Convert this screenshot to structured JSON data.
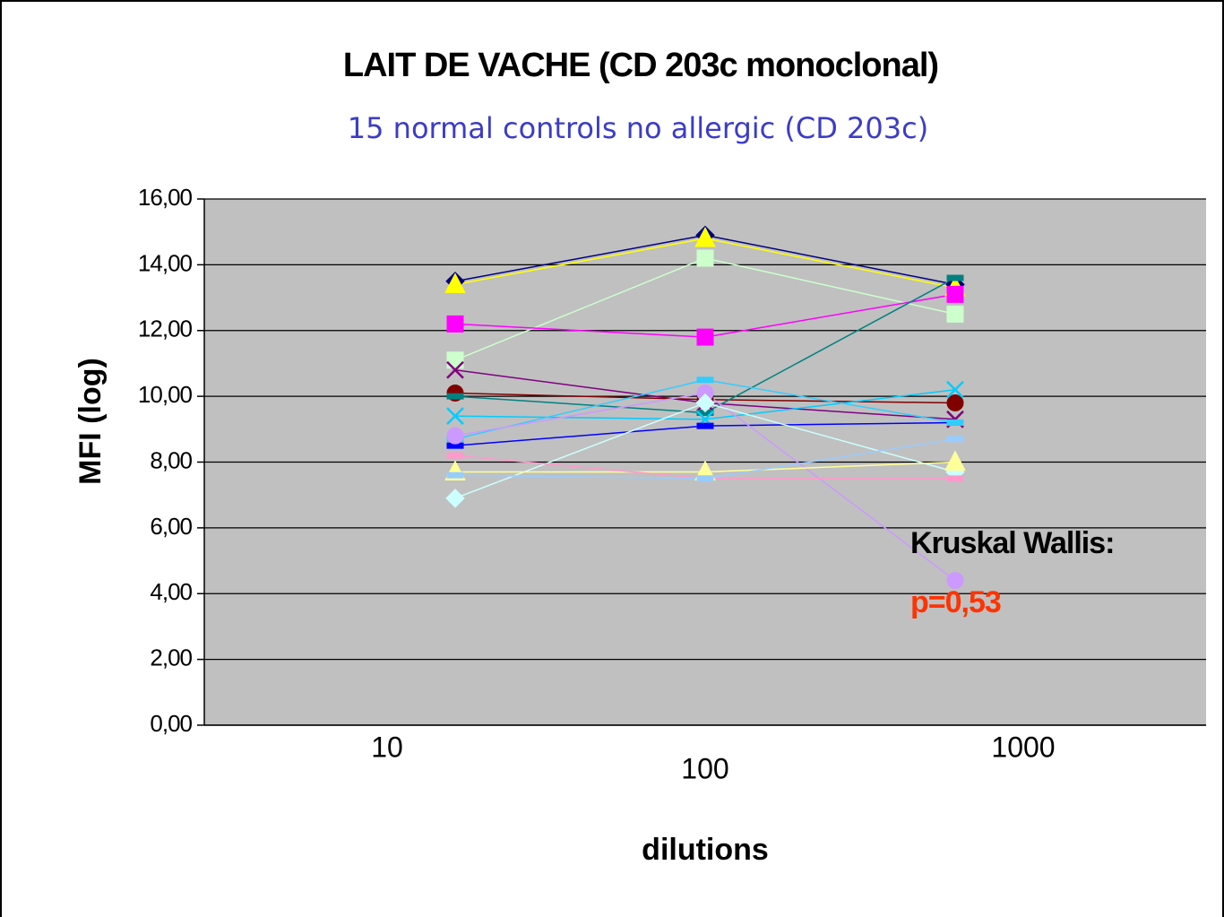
{
  "chart_data": {
    "type": "line",
    "title": "LAIT DE VACHE (CD 203c monoclonal)",
    "subtitle": "15 normal controls no allergic (CD 203c)",
    "y_label": "MFI  (log)",
    "x_label": "dilutions",
    "annotations": [
      {
        "text": "Kruskal Wallis:",
        "color": "#000000"
      },
      {
        "text": "p=0,53",
        "color": "#ff3300"
      }
    ],
    "categories": [
      "10",
      "100",
      "1000"
    ],
    "ylim": [
      0,
      16
    ],
    "yticks": [
      {
        "value": 0,
        "label": "0,00"
      },
      {
        "value": 2,
        "label": "2,00"
      },
      {
        "value": 4,
        "label": "4,00"
      },
      {
        "value": 6,
        "label": "6,00"
      },
      {
        "value": 8,
        "label": "8,00"
      },
      {
        "value": 10,
        "label": "10,00"
      },
      {
        "value": 12,
        "label": "12,00"
      },
      {
        "value": 14,
        "label": "14,00"
      },
      {
        "value": 16,
        "label": "16,00"
      }
    ],
    "grid": true,
    "plot_background": "#c0c0c0",
    "series": [
      {
        "color": "#000080",
        "marker": "diamond",
        "values": [
          13.5,
          14.9,
          13.4
        ]
      },
      {
        "color": "#ffff00",
        "marker": "triangle",
        "values": [
          13.4,
          14.8,
          13.3
        ]
      },
      {
        "color": "#ccffcc",
        "marker": "square",
        "values": [
          11.1,
          14.2,
          12.5
        ]
      },
      {
        "color": "#ff00ff",
        "marker": "square",
        "values": [
          12.2,
          11.8,
          13.1
        ]
      },
      {
        "color": "#800080",
        "marker": "x",
        "values": [
          10.8,
          9.8,
          9.3
        ]
      },
      {
        "color": "#800000",
        "marker": "circle",
        "values": [
          10.1,
          9.9,
          9.8
        ]
      },
      {
        "color": "#008080",
        "marker": "dash",
        "values": [
          10.0,
          9.5,
          13.6
        ]
      },
      {
        "color": "#00ccff",
        "marker": "x",
        "values": [
          9.4,
          9.3,
          10.2
        ]
      },
      {
        "color": "#0000ff",
        "marker": "dash",
        "values": [
          8.5,
          9.1,
          9.2
        ]
      },
      {
        "color": "#33ccff",
        "marker": "dash",
        "values": [
          8.7,
          10.5,
          9.2
        ]
      },
      {
        "color": "#cc99ff",
        "marker": "circle",
        "values": [
          8.8,
          10.1,
          4.4
        ]
      },
      {
        "color": "#ccffff",
        "marker": "diamond",
        "values": [
          6.9,
          9.8,
          7.7
        ]
      },
      {
        "color": "#ffff99",
        "marker": "triangle",
        "values": [
          7.7,
          7.7,
          8.0
        ]
      },
      {
        "color": "#ff99cc",
        "marker": "dash",
        "values": [
          8.2,
          7.5,
          7.5
        ]
      },
      {
        "color": "#99ccff",
        "marker": "dash",
        "values": [
          7.6,
          7.5,
          8.7
        ]
      }
    ]
  }
}
